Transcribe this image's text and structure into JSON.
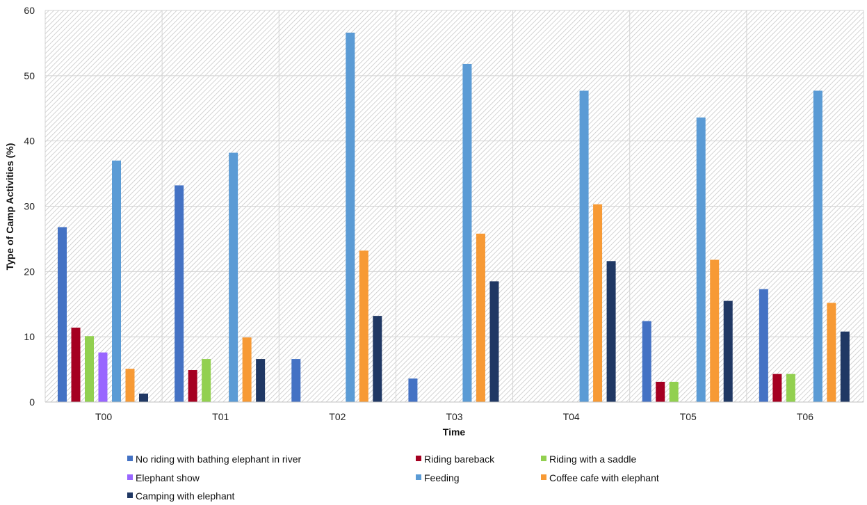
{
  "chart_data": {
    "type": "bar",
    "title": "",
    "xlabel": "Time",
    "ylabel": "Type of Camp Activities (%)",
    "ylim": [
      0,
      60
    ],
    "yticks": [
      0,
      10,
      20,
      30,
      40,
      50,
      60
    ],
    "grid": true,
    "legend_position": "bottom",
    "categories": [
      "T00",
      "T01",
      "T02",
      "T03",
      "T04",
      "T05",
      "T06"
    ],
    "series": [
      {
        "name": "No riding with bathing elephant in river",
        "color": "#4472C4",
        "values": [
          26.8,
          33.2,
          6.6,
          3.6,
          0,
          12.4,
          17.3
        ]
      },
      {
        "name": "Riding bareback",
        "color": "#A50021",
        "values": [
          11.4,
          4.9,
          0,
          0,
          0,
          3.1,
          4.3
        ]
      },
      {
        "name": "Riding with a saddle",
        "color": "#92D050",
        "values": [
          10.1,
          6.6,
          0,
          0,
          0,
          3.1,
          4.3
        ]
      },
      {
        "name": "Elephant show",
        "color": "#9966FF",
        "values": [
          7.6,
          0,
          0,
          0,
          0,
          0,
          0
        ]
      },
      {
        "name": "Feeding",
        "color": "#5B9BD5",
        "values": [
          37.0,
          38.2,
          56.6,
          51.8,
          47.7,
          43.6,
          47.7
        ]
      },
      {
        "name": "Coffee cafe with elephant",
        "color": "#F79A35",
        "values": [
          5.1,
          9.9,
          23.2,
          25.8,
          30.3,
          21.8,
          15.2
        ]
      },
      {
        "name": "Camping with elephant",
        "color": "#203864",
        "values": [
          1.3,
          6.6,
          13.2,
          18.5,
          21.6,
          15.5,
          10.8
        ]
      }
    ]
  }
}
